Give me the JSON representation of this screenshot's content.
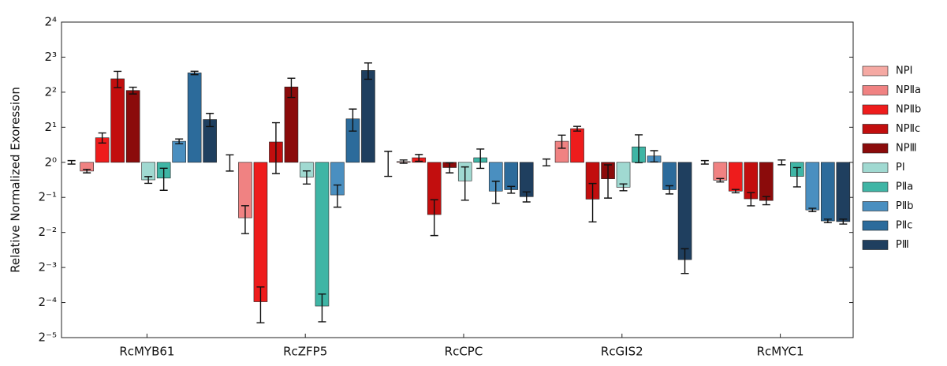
{
  "chart_data": {
    "type": "bar",
    "y_label": "Relative Normalized Exoression",
    "log_base": 2,
    "categories": [
      "RcMYB61",
      "RcZFP5",
      "RcCPC",
      "RcGIS2",
      "RcMYC1"
    ],
    "ylim": [
      0.03125,
      16
    ],
    "yticks": [
      {
        "value": 0.03125,
        "label": "2⁻⁵"
      },
      {
        "value": 0.0625,
        "label": "2⁻⁴"
      },
      {
        "value": 0.125,
        "label": "2⁻³"
      },
      {
        "value": 0.25,
        "label": "2⁻²"
      },
      {
        "value": 0.5,
        "label": "2⁻¹"
      },
      {
        "value": 1,
        "label": "2⁰"
      },
      {
        "value": 2,
        "label": "2¹"
      },
      {
        "value": 4,
        "label": "2²"
      },
      {
        "value": 8,
        "label": "2³"
      },
      {
        "value": 16,
        "label": "2⁴"
      }
    ],
    "series": [
      {
        "name": "NPⅠ",
        "color": "#f5a9a3",
        "values": [
          1,
          1,
          1,
          1,
          1
        ],
        "errors": [
          0.034,
          0.159,
          0.242,
          0.067,
          0.034
        ]
      },
      {
        "name": "NPⅡa",
        "color": "#f08282",
        "values": [
          0.841,
          0.334,
          1.014,
          1.516,
          0.702
        ],
        "errors": [
          0.029,
          0.09,
          0.034,
          0.196,
          0.024
        ]
      },
      {
        "name": "NPⅡb",
        "color": "#ee1c1c",
        "values": [
          1.625,
          0.0635,
          1.094,
          1.945,
          0.566
        ],
        "errors": [
          0.161,
          0.0216,
          0.073,
          0.091,
          0.019
        ]
      },
      {
        "name": "NPⅡc",
        "color": "#c20e0e",
        "values": [
          5.21,
          1.495,
          0.356,
          0.483,
          0.486
        ],
        "errors": [
          0.828,
          0.694,
          0.121,
          0.175,
          0.063
        ]
      },
      {
        "name": "NPⅢ",
        "color": "#8b0b0b",
        "values": [
          4.14,
          4.44,
          0.901,
          0.722,
          0.47
        ],
        "errors": [
          0.277,
          0.835,
          0.089,
          0.229,
          0.038
        ]
      },
      {
        "name": "PⅠ",
        "color": "#a0d9d1",
        "values": [
          0.707,
          0.747,
          0.693,
          0.611,
          1
        ],
        "errors": [
          0.047,
          0.096,
          0.22,
          0.041,
          0.047
        ]
      },
      {
        "name": "PⅡa",
        "color": "#3fb5a5",
        "values": [
          0.732,
          0.0583,
          1.094,
          1.357,
          0.758
        ],
        "errors": [
          0.157,
          0.0156,
          0.206,
          0.364,
          0.143
        ]
      },
      {
        "name": "PⅡb",
        "color": "#4a8fc0",
        "values": [
          1.516,
          0.525,
          0.566,
          1.133,
          0.39
        ],
        "errors": [
          0.071,
          0.113,
          0.122,
          0.126,
          0.013
        ]
      },
      {
        "name": "PⅡc",
        "color": "#2c6b9b",
        "values": [
          5.86,
          2.36,
          0.582,
          0.582,
          0.314
        ],
        "errors": [
          0.199,
          0.507,
          0.039,
          0.047,
          0.011
        ]
      },
      {
        "name": "PⅢ",
        "color": "#1f3f5f",
        "values": [
          2.33,
          6.15,
          0.507,
          0.146,
          0.31
        ],
        "errors": [
          0.301,
          0.978,
          0.05,
          0.035,
          0.015
        ]
      }
    ]
  }
}
